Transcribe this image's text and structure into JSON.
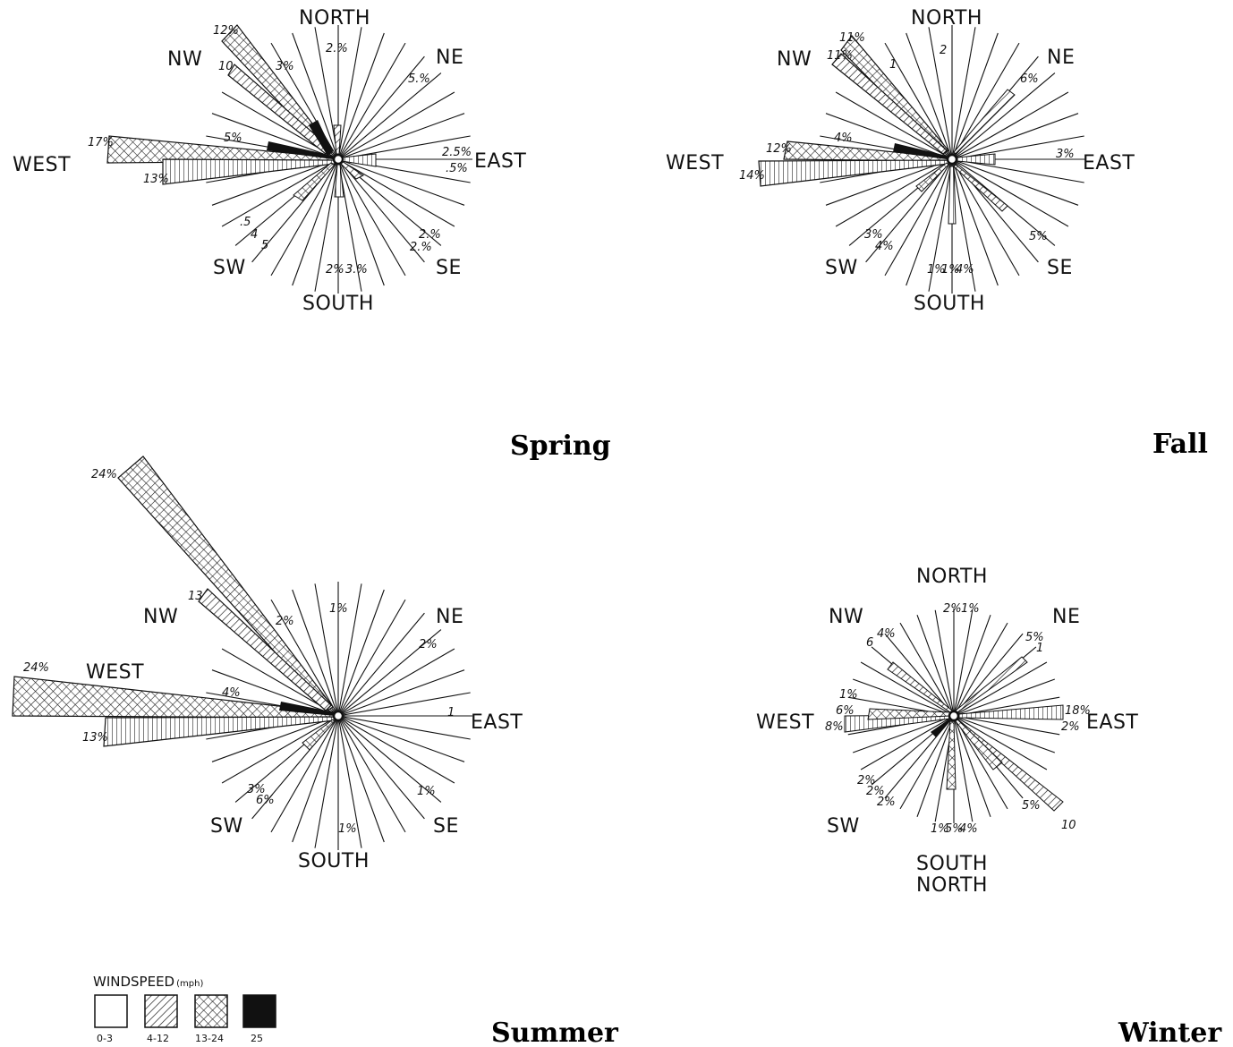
{
  "colors": {
    "ink": "#111111",
    "background": "#ffffff"
  },
  "legend": {
    "title": "WINDSPEED",
    "unit": "(mph)",
    "classes": [
      {
        "range": "0-3",
        "fill": "blank"
      },
      {
        "range": "4-12",
        "fill": "diagonal-hatch"
      },
      {
        "range": "13-24",
        "fill": "crosshatch"
      },
      {
        "range": "25",
        "fill": "solid-black"
      }
    ]
  },
  "roses": [
    {
      "season": "Spring",
      "directions": {
        "north": "NORTH",
        "ne": "NE",
        "east": "EAST",
        "se": "SE",
        "south": "SOUTH",
        "sw": "SW",
        "west": "WEST",
        "nw": "NW"
      },
      "labels": [
        "12%",
        "10",
        "3%",
        "2.%",
        "5.%",
        "2.5%",
        ".5%",
        "2.%",
        "2.%",
        "2%",
        "3.%",
        ".5",
        "4",
        "5",
        "17%",
        "13%",
        "5%"
      ]
    },
    {
      "season": "Fall",
      "directions": {
        "north": "NORTH",
        "ne": "NE",
        "east": "EAST",
        "se": "SE",
        "south": "SOUTH",
        "sw": "SW",
        "west": "WEST",
        "nw": "NW"
      },
      "labels": [
        "11%",
        "11%",
        "1",
        "2",
        "6%",
        "3%",
        "5%",
        "1%",
        "1%",
        "4%",
        "3%",
        "4%",
        "12%",
        "14%",
        "4%"
      ]
    },
    {
      "season": "Summer",
      "directions": {
        "north": "",
        "ne": "NE",
        "east": "EAST",
        "se": "SE",
        "south": "SOUTH",
        "sw": "SW",
        "west": "WEST",
        "nw": "NW"
      },
      "labels": [
        "24%",
        "13",
        "2%",
        "1%",
        "2%",
        "1",
        "1%",
        "1%",
        "3%",
        "6%",
        "24%",
        "13%",
        "4%"
      ]
    },
    {
      "season": "Winter",
      "directions": {
        "north": "NORTH",
        "ne": "NE",
        "east": "EAST",
        "se": "SE",
        "south": "SOUTH",
        "sw": "SW",
        "west": "WEST",
        "nw": "NW"
      },
      "extra_label": "NORTH",
      "labels": [
        "2%",
        "1%",
        "6",
        "4%",
        "5%",
        "1",
        "1%",
        "6%",
        "8%",
        "18%",
        "2%",
        "10",
        "5%",
        "1%",
        "5%",
        "4%",
        "2%",
        "2%",
        "2%"
      ]
    }
  ]
}
